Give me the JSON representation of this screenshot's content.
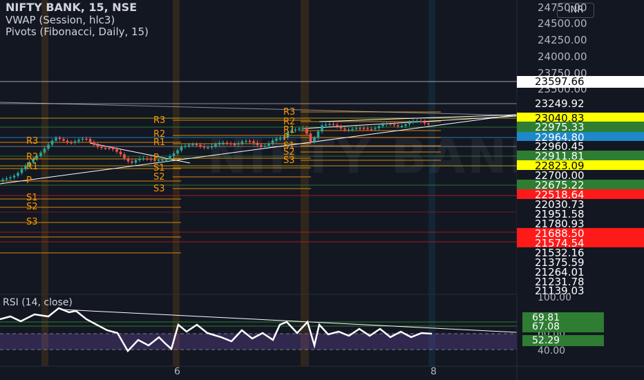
{
  "header": {
    "title": "NIFTY BANK, 15, NSE",
    "vwap": "VWAP (Session, hlc3)",
    "pivots": "Pivots (Fibonacci, Daily, 15)",
    "currency": "INR"
  },
  "watermark": "NIFTY BANK",
  "price_scale": {
    "ticks": [
      "24750.00",
      "24500.00",
      "24250.00",
      "24000.00",
      "23750.00",
      "23500.00"
    ],
    "tags": [
      {
        "value": "23597.66",
        "bg": "#ffffff",
        "fg": "#000000"
      },
      {
        "value": "23249.92",
        "bg": "#131722",
        "fg": "#ffffff"
      },
      {
        "value": "23040.83",
        "bg": "#ffff00",
        "fg": "#000000"
      },
      {
        "value": "22975.33",
        "bg": "#2e7d32",
        "fg": "#ffffff"
      },
      {
        "value": "22964.80",
        "bg": "#1e88c8",
        "fg": "#ffffff"
      },
      {
        "value": "22960.45",
        "bg": "#131722",
        "fg": "#ffffff"
      },
      {
        "value": "22911.81",
        "bg": "#2e7d32",
        "fg": "#ffffff"
      },
      {
        "value": "22823.09",
        "bg": "#ffff00",
        "fg": "#000000"
      },
      {
        "value": "22700.00",
        "bg": "#131722",
        "fg": "#ffffff"
      },
      {
        "value": "22675.22",
        "bg": "#2e7d32",
        "fg": "#ffffff"
      },
      {
        "value": "22518.64",
        "bg": "#ff1a1a",
        "fg": "#ffffff"
      },
      {
        "value": "22030.73",
        "bg": "#131722",
        "fg": "#ffffff"
      },
      {
        "value": "21951.58",
        "bg": "#131722",
        "fg": "#ffffff"
      },
      {
        "value": "21780.93",
        "bg": "#131722",
        "fg": "#ffffff"
      },
      {
        "value": "21688.50",
        "bg": "#ff1a1a",
        "fg": "#ffffff"
      },
      {
        "value": "21574.54",
        "bg": "#ff1a1a",
        "fg": "#ffffff"
      },
      {
        "value": "21532.16",
        "bg": "#131722",
        "fg": "#ffffff"
      },
      {
        "value": "21375.59",
        "bg": "#131722",
        "fg": "#ffffff"
      },
      {
        "value": "21264.01",
        "bg": "#131722",
        "fg": "#ffffff"
      },
      {
        "value": "21231.78",
        "bg": "#131722",
        "fg": "#ffffff"
      },
      {
        "value": "21139.03",
        "bg": "#131722",
        "fg": "#ffffff"
      }
    ]
  },
  "rsi": {
    "label": "RSI (14, close)",
    "ticks": [
      "100.00",
      "60.00",
      "40.00"
    ],
    "tags": [
      {
        "value": "69.81",
        "bg": "#2e7d32"
      },
      {
        "value": "67.08",
        "bg": "#2e7d32"
      },
      {
        "value": "52.29",
        "bg": "#2e7d32"
      }
    ]
  },
  "pivot_labels": [
    "R3",
    "R2",
    "R1",
    "P",
    "S1",
    "S2",
    "S3"
  ],
  "x_axis": {
    "labels": [
      "6",
      "8"
    ]
  },
  "colors": {
    "up": "#26a69a",
    "down": "#ef5350",
    "pivot": "#ff9800",
    "rsi": "#ffffff",
    "background": "#131722"
  }
}
